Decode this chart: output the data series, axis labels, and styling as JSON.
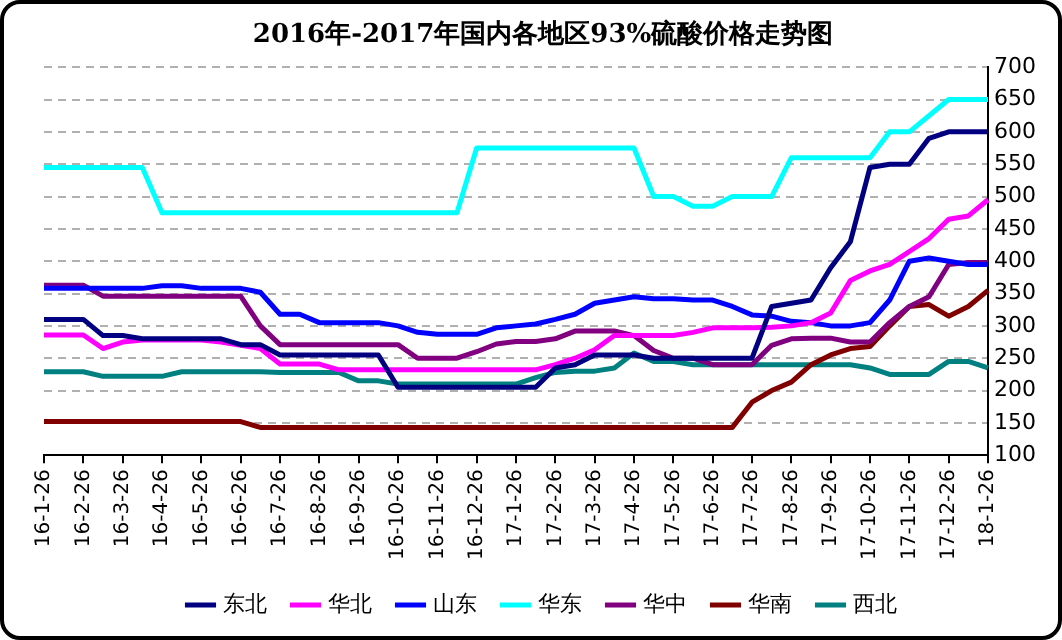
{
  "chart_data": {
    "type": "line",
    "title": "2016年-2017年国内各地区93%硫酸价格走势图",
    "categories": [
      "16-1-26",
      null,
      "16-2-26",
      null,
      "16-3-26",
      null,
      "16-4-26",
      null,
      "16-5-26",
      null,
      "16-6-26",
      null,
      "16-7-26",
      null,
      "16-8-26",
      null,
      "16-9-26",
      null,
      "16-10-26",
      null,
      "16-11-26",
      null,
      "16-12-26",
      null,
      "17-1-26",
      null,
      "17-2-26",
      null,
      "17-3-26",
      null,
      "17-4-26",
      null,
      "17-5-26",
      null,
      "17-6-26",
      null,
      "17-7-26",
      null,
      "17-8-26",
      null,
      "17-9-26",
      null,
      "17-10-26",
      null,
      "17-11-26",
      null,
      "17-12-26",
      null,
      "18-1-26"
    ],
    "series": [
      {
        "name": "东北",
        "color": "#000080",
        "values": [
          310,
          310,
          310,
          285,
          285,
          280,
          280,
          280,
          280,
          280,
          271,
          271,
          255,
          255,
          255,
          255,
          255,
          255,
          205,
          205,
          205,
          205,
          205,
          205,
          205,
          205,
          235,
          240,
          255,
          255,
          255,
          250,
          250,
          250,
          250,
          250,
          250,
          330,
          335,
          340,
          390,
          430,
          545,
          550,
          550,
          590,
          600,
          600,
          600
        ]
      },
      {
        "name": "华北",
        "color": "#ff00ff",
        "values": [
          286,
          286,
          286,
          265,
          275,
          278,
          278,
          278,
          278,
          275,
          270,
          265,
          241,
          241,
          241,
          232,
          232,
          232,
          232,
          232,
          232,
          232,
          232,
          232,
          232,
          232,
          240,
          250,
          263,
          285,
          285,
          285,
          285,
          290,
          297,
          297,
          297,
          298,
          300,
          305,
          320,
          370,
          385,
          395,
          415,
          435,
          465,
          470,
          495
        ]
      },
      {
        "name": "山东",
        "color": "#0000ff",
        "values": [
          358,
          358,
          358,
          358,
          358,
          358,
          362,
          362,
          358,
          358,
          358,
          352,
          318,
          318,
          305,
          305,
          305,
          305,
          300,
          290,
          287,
          287,
          287,
          297,
          300,
          303,
          310,
          318,
          335,
          340,
          345,
          342,
          342,
          340,
          340,
          330,
          317,
          315,
          307,
          305,
          300,
          300,
          305,
          340,
          400,
          405,
          400,
          395,
          395
        ]
      },
      {
        "name": "华东",
        "color": "#00ffff",
        "values": [
          545,
          545,
          545,
          545,
          545,
          545,
          475,
          475,
          475,
          475,
          475,
          475,
          475,
          475,
          475,
          475,
          475,
          475,
          475,
          475,
          475,
          475,
          575,
          575,
          575,
          575,
          575,
          575,
          575,
          575,
          575,
          500,
          500,
          485,
          485,
          500,
          500,
          500,
          560,
          560,
          560,
          560,
          560,
          600,
          600,
          625,
          650,
          650,
          650
        ]
      },
      {
        "name": "华中",
        "color": "#800080",
        "values": [
          363,
          363,
          363,
          346,
          346,
          346,
          346,
          346,
          346,
          346,
          346,
          300,
          271,
          271,
          271,
          271,
          271,
          271,
          271,
          250,
          250,
          250,
          260,
          272,
          276,
          276,
          280,
          292,
          292,
          292,
          285,
          262,
          250,
          250,
          240,
          240,
          240,
          270,
          280,
          281,
          281,
          275,
          275,
          305,
          330,
          345,
          395,
          398,
          398
        ]
      },
      {
        "name": "华南",
        "color": "#800000",
        "values": [
          152,
          152,
          152,
          152,
          152,
          152,
          152,
          152,
          152,
          152,
          152,
          143,
          143,
          143,
          143,
          143,
          143,
          143,
          143,
          143,
          143,
          143,
          143,
          143,
          143,
          143,
          143,
          143,
          143,
          143,
          143,
          143,
          143,
          143,
          143,
          143,
          182,
          200,
          213,
          240,
          255,
          265,
          268,
          300,
          330,
          333,
          315,
          330,
          355
        ]
      },
      {
        "name": "西北",
        "color": "#008080",
        "values": [
          229,
          229,
          229,
          222,
          222,
          222,
          222,
          229,
          229,
          229,
          229,
          229,
          228,
          228,
          228,
          228,
          215,
          215,
          210,
          210,
          210,
          210,
          210,
          210,
          210,
          220,
          228,
          230,
          230,
          235,
          258,
          245,
          245,
          240,
          240,
          240,
          240,
          240,
          240,
          240,
          240,
          240,
          235,
          225,
          225,
          225,
          245,
          245,
          235
        ]
      }
    ],
    "ylim": [
      100,
      700
    ],
    "yticks": [
      100,
      150,
      200,
      250,
      300,
      350,
      400,
      450,
      500,
      550,
      600,
      650,
      700
    ],
    "grid": "y",
    "legend": "bottom",
    "marker": "none",
    "line_style": "solid"
  }
}
